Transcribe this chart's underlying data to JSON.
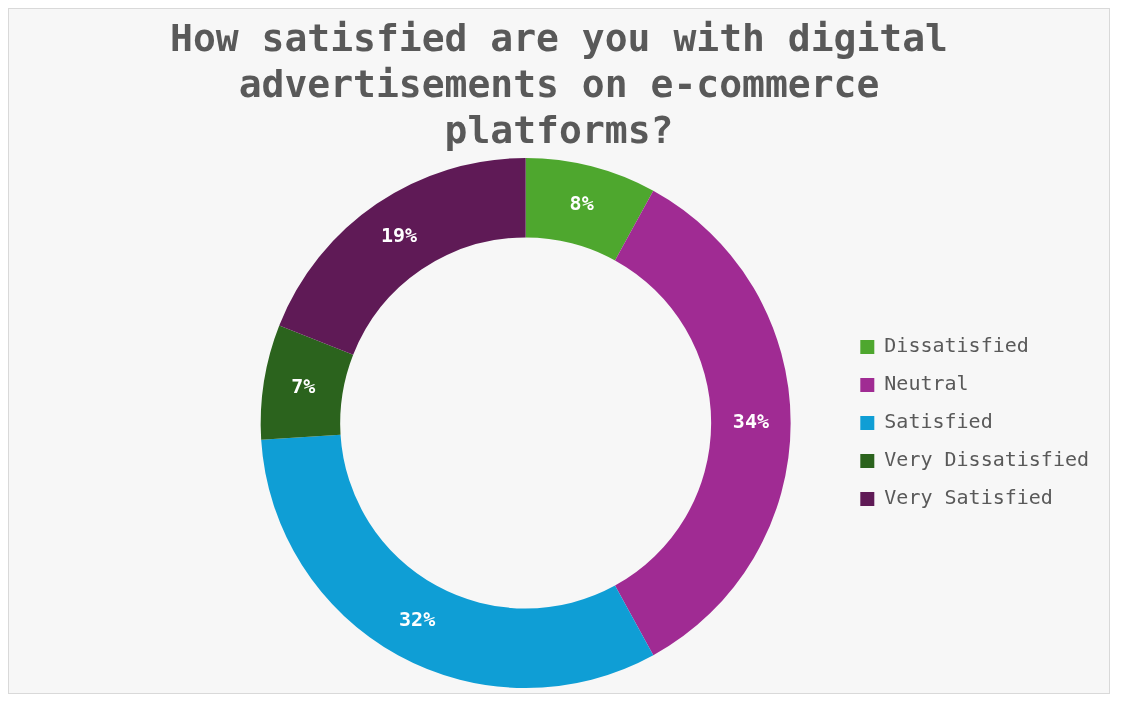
{
  "chart_data": {
    "type": "donut",
    "title": "How satisfied are you with digital advertisements on e-commerce platforms?",
    "categories": [
      "Dissatisfied",
      "Neutral",
      "Satisfied",
      "Very Dissatisfied",
      "Very Satisfied"
    ],
    "values": [
      8,
      34,
      32,
      7,
      19
    ],
    "value_labels": [
      "8%",
      "34%",
      "32%",
      "7%",
      "19%"
    ],
    "colors": [
      "#4ea72e",
      "#a02b93",
      "#0f9ed5",
      "#2b631d",
      "#5f1a56"
    ],
    "legend": "right"
  }
}
